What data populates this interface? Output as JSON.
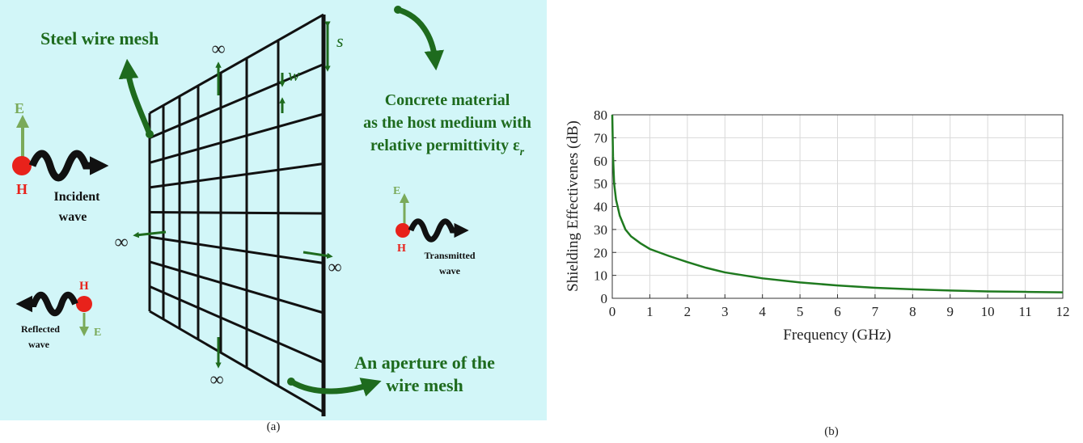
{
  "diagram": {
    "mesh_label": "Steel wire mesh",
    "infinity": [
      "∞",
      "∞",
      "∞",
      "∞"
    ],
    "spacing_label": "s",
    "width_label": "w",
    "host_lines": [
      "Concrete material",
      "as the host medium with",
      "relative permittivity ε"
    ],
    "host_subscript": "r",
    "incident": {
      "e": "E",
      "h": "H",
      "lines": [
        "Incident",
        "wave"
      ]
    },
    "transmitted": {
      "e": "E",
      "h": "H",
      "lines": [
        "Transmitted",
        "wave"
      ]
    },
    "reflected": {
      "e": "E",
      "h": "H",
      "lines": [
        "Reflected",
        "wave"
      ]
    },
    "aperture_lines": [
      "An aperture of the",
      "wire mesh"
    ],
    "caption": "(a)"
  },
  "chart_caption": "(b)",
  "chart_data": {
    "type": "line",
    "xlabel": "Frequency (GHz)",
    "ylabel": "Shielding Effectivenes (dB)",
    "x": [
      0,
      0.02,
      0.05,
      0.1,
      0.2,
      0.35,
      0.5,
      0.75,
      1,
      1.5,
      2,
      2.5,
      3,
      4,
      5,
      6,
      7,
      8,
      9,
      10,
      11,
      12
    ],
    "values": [
      80,
      62,
      50,
      43,
      36,
      30,
      27,
      24,
      21.5,
      18.5,
      15.8,
      13.3,
      11.3,
      8.7,
      6.9,
      5.6,
      4.6,
      3.9,
      3.4,
      3.0,
      2.8,
      2.6
    ],
    "color": "#1f7a1f",
    "xlim": [
      0,
      12
    ],
    "xticks": [
      0,
      1,
      2,
      3,
      4,
      5,
      6,
      7,
      8,
      9,
      10,
      11,
      12
    ],
    "ylim": [
      0,
      80
    ],
    "yticks": [
      0,
      10,
      20,
      30,
      40,
      50,
      60,
      70,
      80
    ],
    "grid": true
  }
}
